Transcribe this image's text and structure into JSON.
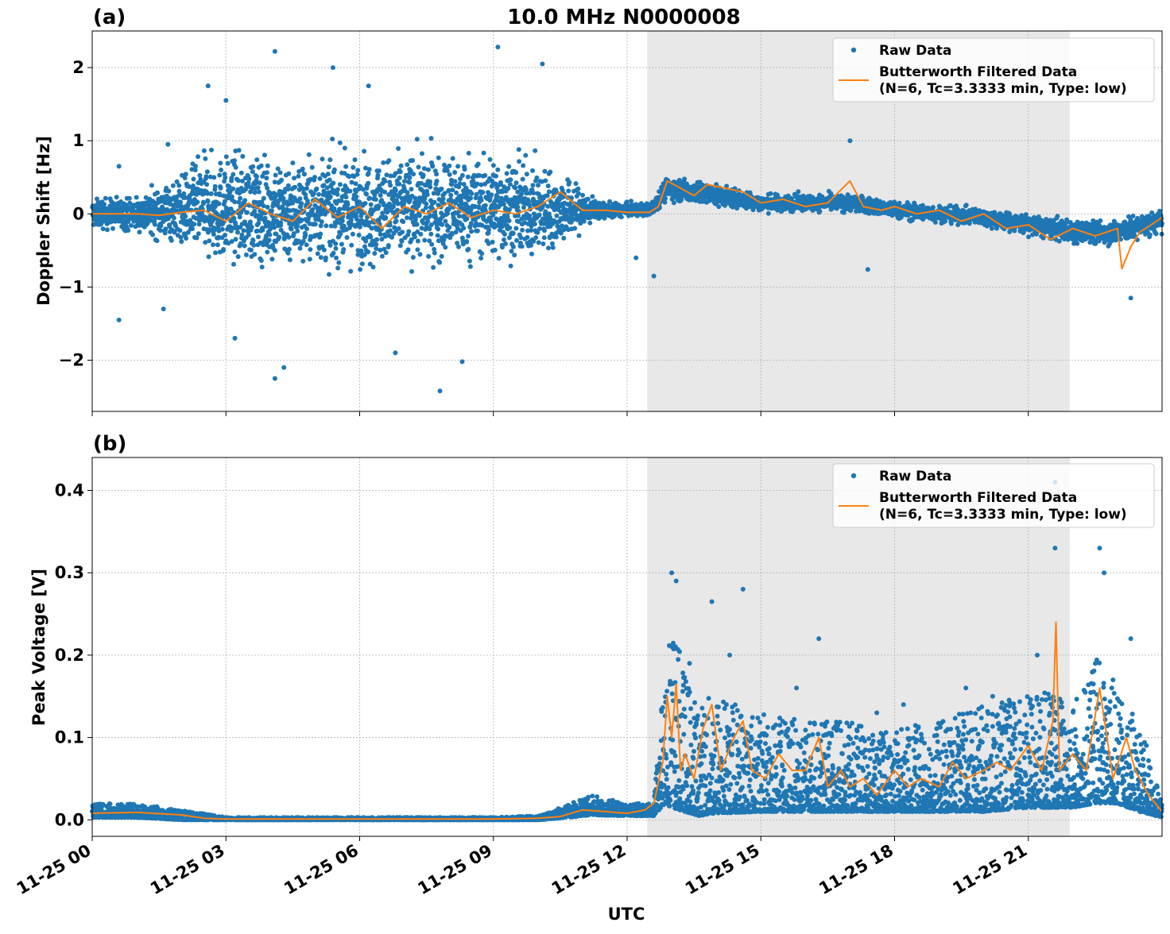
{
  "figure": {
    "title": "10.0 MHz N0000008",
    "xlabel": "UTC"
  },
  "colors": {
    "raw": "#1f77b4",
    "filtered": "#ff7f0e",
    "shade": "#e8e8e8",
    "grid": "#b0b0b0"
  },
  "legend": {
    "raw_label": "Raw Data",
    "filtered_label_line1": "Butterworth Filtered Data",
    "filtered_label_line2": "(N=6, Tc=3.3333 min, Type: low)",
    "placement": "upper right"
  },
  "chart_data": [
    {
      "type": "scatter",
      "panel_label": "(a)",
      "ylabel": "Doppler Shift [Hz]",
      "xlim": [
        0,
        24
      ],
      "ylim": [
        -2.7,
        2.5
      ],
      "yticks": [
        {
          "value": 2,
          "label": "2"
        },
        {
          "value": 1,
          "label": "1"
        },
        {
          "value": 0,
          "label": "0"
        },
        {
          "value": -1,
          "label": "−1"
        },
        {
          "value": -2,
          "label": "−2"
        }
      ],
      "shaded_x_range": [
        12.45,
        21.93
      ],
      "grid": true,
      "series": [
        {
          "name": "Raw Data",
          "style": "points",
          "envelope": {
            "x": [
              0,
              1,
              2,
              2.5,
              4,
              6,
              8,
              9,
              10,
              11,
              11.3,
              12,
              12.5,
              12.9,
              13.5,
              15,
              16,
              17,
              18,
              19,
              20,
              21,
              22,
              23,
              24
            ],
            "center": [
              0,
              0,
              0.05,
              0.08,
              0.05,
              0.05,
              0.1,
              0.1,
              0.05,
              0.05,
              0.05,
              0.05,
              0.05,
              0.35,
              0.3,
              0.15,
              0.15,
              0.15,
              0.05,
              0.0,
              -0.05,
              -0.15,
              -0.25,
              -0.25,
              -0.1
            ],
            "spread": [
              0.25,
              0.3,
              0.6,
              0.9,
              0.95,
              0.95,
              0.95,
              0.9,
              0.8,
              0.4,
              0.15,
              0.12,
              0.12,
              0.2,
              0.2,
              0.15,
              0.15,
              0.15,
              0.15,
              0.15,
              0.15,
              0.18,
              0.2,
              0.22,
              0.2
            ]
          },
          "outliers": [
            [
              4.1,
              2.22
            ],
            [
              5.4,
              2.0
            ],
            [
              9.1,
              2.28
            ],
            [
              10.1,
              2.05
            ],
            [
              4.1,
              -2.25
            ],
            [
              4.3,
              -2.1
            ],
            [
              7.8,
              -2.42
            ],
            [
              8.3,
              -2.02
            ],
            [
              17.0,
              1.0
            ],
            [
              17.4,
              -0.76
            ],
            [
              12.6,
              -0.85
            ],
            [
              23.3,
              -1.15
            ],
            [
              0.6,
              0.65
            ],
            [
              1.7,
              0.95
            ],
            [
              2.6,
              1.75
            ],
            [
              3.0,
              1.55
            ],
            [
              0.6,
              -1.45
            ],
            [
              1.6,
              -1.3
            ],
            [
              3.2,
              -1.7
            ],
            [
              6.2,
              1.75
            ],
            [
              6.8,
              -1.9
            ],
            [
              12.2,
              -0.6
            ]
          ]
        },
        {
          "name": "Butterworth Filtered Data (N=6, Tc=3.3333 min, Type: low)",
          "style": "line",
          "x": [
            0,
            0.5,
            1,
            1.5,
            2,
            2.5,
            3,
            3.5,
            4,
            4.5,
            5,
            5.5,
            6,
            6.5,
            7,
            7.5,
            8,
            8.5,
            9,
            9.5,
            10,
            10.5,
            11,
            11.5,
            12,
            12.5,
            12.7,
            12.9,
            13.2,
            13.5,
            13.8,
            14.2,
            14.6,
            15,
            15.5,
            16,
            16.5,
            17.0,
            17.3,
            17.7,
            18,
            18.5,
            19,
            19.5,
            20,
            20.5,
            21,
            21.5,
            22,
            22.5,
            23,
            23.1,
            23.3,
            23.5,
            24
          ],
          "y": [
            0.0,
            0.0,
            0.0,
            -0.02,
            0.02,
            0.05,
            -0.1,
            0.15,
            0.0,
            -0.1,
            0.2,
            -0.05,
            0.1,
            -0.2,
            0.1,
            0.0,
            0.15,
            -0.05,
            0.05,
            0.0,
            0.1,
            0.3,
            0.05,
            0.05,
            0.02,
            0.02,
            0.1,
            0.45,
            0.35,
            0.25,
            0.4,
            0.35,
            0.3,
            0.15,
            0.2,
            0.1,
            0.15,
            0.45,
            0.1,
            0.05,
            0.1,
            0.0,
            0.05,
            -0.1,
            0.0,
            -0.2,
            -0.15,
            -0.35,
            -0.2,
            -0.3,
            -0.2,
            -0.75,
            -0.45,
            -0.25,
            -0.05
          ]
        }
      ]
    },
    {
      "type": "scatter",
      "panel_label": "(b)",
      "ylabel": "Peak Voltage [V]",
      "xlim": [
        0,
        24
      ],
      "ylim": [
        -0.02,
        0.44
      ],
      "yticks": [
        {
          "value": 0.4,
          "label": "0.4"
        },
        {
          "value": 0.3,
          "label": "0.3"
        },
        {
          "value": 0.2,
          "label": "0.2"
        },
        {
          "value": 0.1,
          "label": "0.1"
        },
        {
          "value": 0.0,
          "label": "0.0"
        }
      ],
      "xticks": [
        {
          "value": 0,
          "label": "11-25 00"
        },
        {
          "value": 3,
          "label": "11-25 03"
        },
        {
          "value": 6,
          "label": "11-25 06"
        },
        {
          "value": 9,
          "label": "11-25 09"
        },
        {
          "value": 12,
          "label": "11-25 12"
        },
        {
          "value": 15,
          "label": "11-25 15"
        },
        {
          "value": 18,
          "label": "11-25 18"
        },
        {
          "value": 21,
          "label": "11-25 21"
        }
      ],
      "shaded_x_range": [
        12.45,
        21.93
      ],
      "grid": true,
      "series": [
        {
          "name": "Raw Data",
          "style": "points",
          "envelope": {
            "x": [
              0,
              1,
              2,
              3,
              6,
              9,
              10,
              10.7,
              11.2,
              12,
              12.6,
              12.85,
              13.0,
              13.3,
              13.6,
              14,
              15,
              16,
              17,
              18,
              19,
              20,
              21,
              21.5,
              22,
              22.5,
              23,
              23.5,
              24
            ],
            "low": [
              0.003,
              0.003,
              0.0,
              0.0,
              0.0,
              0.0,
              0.0,
              0.003,
              0.006,
              0.005,
              0.005,
              0.02,
              0.015,
              0.01,
              0.005,
              0.008,
              0.01,
              0.01,
              0.01,
              0.01,
              0.01,
              0.01,
              0.015,
              0.015,
              0.015,
              0.02,
              0.02,
              0.01,
              0.003
            ],
            "high": [
              0.02,
              0.02,
              0.012,
              0.003,
              0.003,
              0.003,
              0.005,
              0.02,
              0.03,
              0.02,
              0.02,
              0.22,
              0.25,
              0.18,
              0.14,
              0.16,
              0.13,
              0.12,
              0.12,
              0.11,
              0.12,
              0.14,
              0.15,
              0.16,
              0.15,
              0.2,
              0.15,
              0.12,
              0.02
            ]
          },
          "outliers": [
            [
              13.0,
              0.3
            ],
            [
              13.1,
              0.29
            ],
            [
              13.9,
              0.265
            ],
            [
              14.6,
              0.28
            ],
            [
              16.3,
              0.22
            ],
            [
              21.6,
              0.41
            ],
            [
              21.6,
              0.33
            ],
            [
              22.6,
              0.33
            ],
            [
              22.7,
              0.3
            ],
            [
              23.3,
              0.22
            ],
            [
              13.4,
              0.19
            ],
            [
              14.3,
              0.2
            ],
            [
              15.8,
              0.16
            ],
            [
              18.2,
              0.14
            ],
            [
              19.6,
              0.16
            ],
            [
              20.2,
              0.15
            ],
            [
              21.2,
              0.2
            ],
            [
              17.6,
              0.13
            ],
            [
              22.9,
              0.17
            ]
          ]
        },
        {
          "name": "Butterworth Filtered Data (N=6, Tc=3.3333 min, Type: low)",
          "style": "line",
          "x": [
            0,
            1,
            2,
            2.5,
            3,
            6,
            9,
            10,
            10.5,
            11,
            11.5,
            12,
            12.4,
            12.6,
            12.8,
            12.9,
            13.0,
            13.1,
            13.2,
            13.3,
            13.5,
            13.7,
            13.9,
            14.1,
            14.4,
            14.6,
            14.8,
            15.1,
            15.4,
            15.7,
            16.0,
            16.3,
            16.5,
            16.8,
            17.0,
            17.3,
            17.6,
            18.0,
            18.3,
            18.6,
            19.0,
            19.3,
            19.6,
            20.0,
            20.3,
            20.6,
            21.0,
            21.3,
            21.55,
            21.62,
            21.7,
            22.0,
            22.3,
            22.6,
            22.9,
            23.2,
            23.4,
            23.7,
            24
          ],
          "y": [
            0.008,
            0.009,
            0.006,
            0.002,
            0.001,
            0.001,
            0.001,
            0.002,
            0.004,
            0.012,
            0.01,
            0.008,
            0.012,
            0.02,
            0.07,
            0.15,
            0.1,
            0.165,
            0.06,
            0.08,
            0.05,
            0.11,
            0.14,
            0.06,
            0.1,
            0.12,
            0.06,
            0.05,
            0.08,
            0.06,
            0.06,
            0.1,
            0.04,
            0.06,
            0.04,
            0.05,
            0.03,
            0.06,
            0.04,
            0.05,
            0.04,
            0.07,
            0.05,
            0.06,
            0.07,
            0.06,
            0.09,
            0.06,
            0.12,
            0.24,
            0.06,
            0.08,
            0.06,
            0.16,
            0.05,
            0.1,
            0.06,
            0.03,
            0.01
          ]
        }
      ]
    }
  ]
}
